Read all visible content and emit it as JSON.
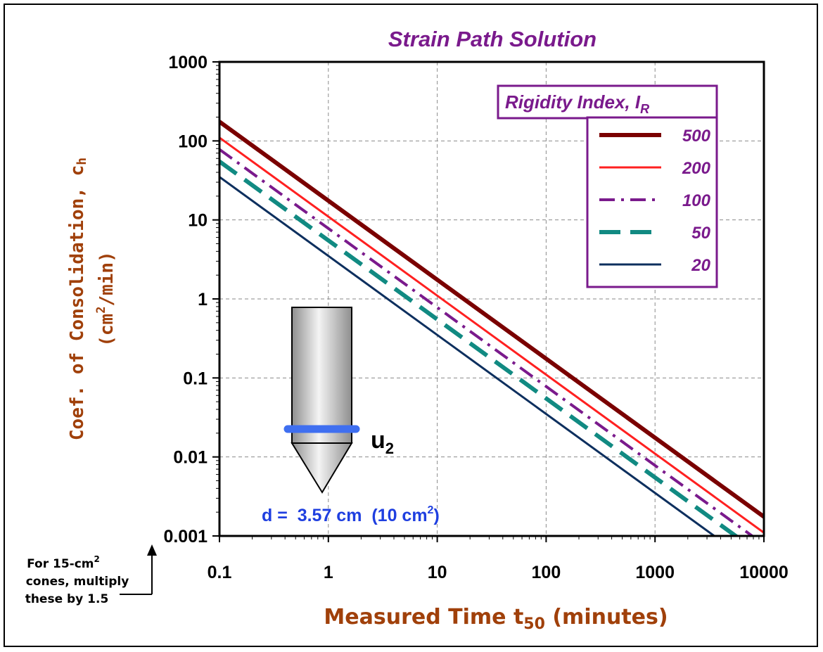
{
  "chart_data": {
    "type": "line",
    "title": "Strain Path Solution",
    "xlabel_main": "Measured Time t",
    "xlabel_sub": "50",
    "xlabel_tail": " (minutes)",
    "ylabel_line1_main": "Coef. of Consolidation, c",
    "ylabel_line1_sub": "h",
    "ylabel_line2_pre": "(cm",
    "ylabel_line2_sup": "2",
    "ylabel_line2_post": "/min)",
    "x_scale": "log",
    "y_scale": "log",
    "xlim": [
      0.1,
      10000
    ],
    "ylim": [
      0.001,
      1000
    ],
    "x_ticks": [
      "0.1",
      "1",
      "10",
      "100",
      "1000",
      "10000"
    ],
    "y_ticks": [
      "1000",
      "100",
      "10",
      "1",
      "0.1",
      "0.01",
      "0.001"
    ],
    "grid": true,
    "legend_title_main": "Rigidity Index, I",
    "legend_title_sub": "R",
    "legend_position": "top-right",
    "series": [
      {
        "name": "500",
        "color": "#7a0000",
        "dash": "solid",
        "x": [
          0.1,
          10000
        ],
        "y": [
          175,
          0.00175
        ]
      },
      {
        "name": "200",
        "color": "#ff2020",
        "dash": "solid",
        "x": [
          0.1,
          10000
        ],
        "y": [
          110,
          0.0011
        ]
      },
      {
        "name": "100",
        "color": "#7a1a8c",
        "dash": "dashdot",
        "x": [
          0.1,
          10000
        ],
        "y": [
          78,
          0.00078
        ]
      },
      {
        "name": "50",
        "color": "#118a82",
        "dash": "dash",
        "x": [
          0.1,
          10000
        ],
        "y": [
          55,
          0.00055
        ]
      },
      {
        "name": "20",
        "color": "#0d2f5e",
        "dash": "solid",
        "x": [
          0.1,
          10000
        ],
        "y": [
          35,
          0.00035
        ]
      }
    ]
  },
  "annotations": {
    "probe_label_main": "u",
    "probe_label_sub": "2",
    "diameter_pre": "d =  3.57 cm  (10 cm",
    "diameter_sup": "2",
    "diameter_post": ")",
    "note_line1_pre": "For 15-cm",
    "note_line1_sup": "2",
    "note_line2": "cones, multiply",
    "note_line3": "these by 1.5"
  },
  "colors": {
    "title": "#7a1a8c",
    "axis_label": "#a0400a",
    "legend_border": "#7a1a8c",
    "legend_text": "#7a1a8c",
    "diameter_text": "#1f3fe0",
    "probe_ring": "#3f6ff0"
  }
}
